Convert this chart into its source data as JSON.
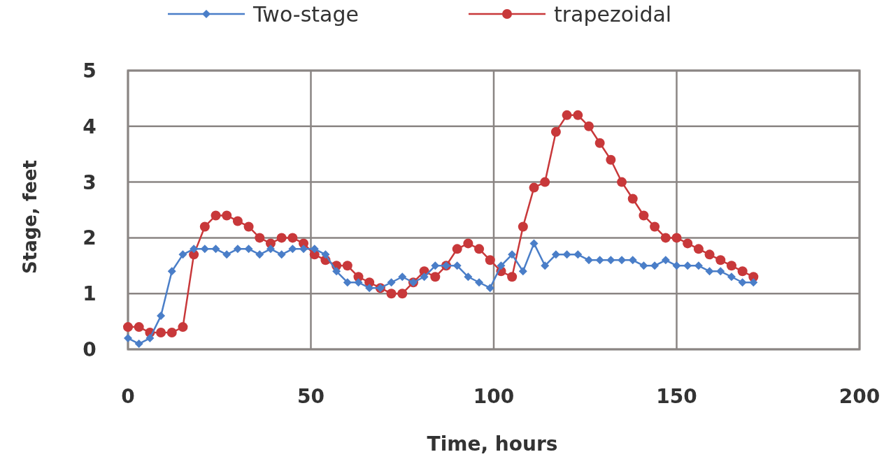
{
  "chart_data": {
    "type": "line",
    "xlabel": "Time, hours",
    "ylabel": "Stage, feet",
    "x": [
      0,
      3,
      6,
      9,
      12,
      15,
      18,
      21,
      24,
      27,
      30,
      33,
      36,
      39,
      42,
      45,
      48,
      51,
      54,
      57,
      60,
      63,
      66,
      69,
      72,
      75,
      78,
      81,
      84,
      87,
      90,
      93,
      96,
      99,
      102,
      105,
      108,
      111,
      114,
      117,
      120,
      123,
      126,
      129,
      132,
      135,
      138,
      141,
      144,
      147,
      150,
      153,
      156,
      159,
      162,
      165,
      168,
      171
    ],
    "series": [
      {
        "name": "Two-stage",
        "color": "#4a7ec8",
        "marker": "diamond",
        "values": [
          0.2,
          0.1,
          0.2,
          0.6,
          1.4,
          1.7,
          1.8,
          1.8,
          1.8,
          1.7,
          1.8,
          1.8,
          1.7,
          1.8,
          1.7,
          1.8,
          1.8,
          1.8,
          1.7,
          1.4,
          1.2,
          1.2,
          1.1,
          1.1,
          1.2,
          1.3,
          1.2,
          1.3,
          1.5,
          1.5,
          1.5,
          1.3,
          1.2,
          1.1,
          1.5,
          1.7,
          1.4,
          1.9,
          1.5,
          1.7,
          1.7,
          1.7,
          1.6,
          1.6,
          1.6,
          1.6,
          1.6,
          1.5,
          1.5,
          1.6,
          1.5,
          1.5,
          1.5,
          1.4,
          1.4,
          1.3,
          1.2,
          1.2
        ]
      },
      {
        "name": "trapezoidal",
        "color": "#c8383a",
        "marker": "circle",
        "values": [
          0.4,
          0.4,
          0.3,
          0.3,
          0.3,
          0.4,
          1.7,
          2.2,
          2.4,
          2.4,
          2.3,
          2.2,
          2.0,
          1.9,
          2.0,
          2.0,
          1.9,
          1.7,
          1.6,
          1.5,
          1.5,
          1.3,
          1.2,
          1.1,
          1.0,
          1.0,
          1.2,
          1.4,
          1.3,
          1.5,
          1.8,
          1.9,
          1.8,
          1.6,
          1.4,
          1.3,
          2.2,
          2.9,
          3.0,
          3.9,
          4.2,
          4.2,
          4.0,
          3.7,
          3.4,
          3.0,
          2.7,
          2.4,
          2.2,
          2.0,
          2.0,
          1.9,
          1.8,
          1.7,
          1.6,
          1.5,
          1.4,
          1.3
        ]
      }
    ],
    "xlim": [
      0,
      200
    ],
    "xticks": [
      0,
      50,
      100,
      150,
      200
    ],
    "ylim": [
      0,
      5
    ],
    "yticks": [
      0,
      1,
      2,
      3,
      4,
      5
    ],
    "grid": true,
    "legend": "top"
  }
}
